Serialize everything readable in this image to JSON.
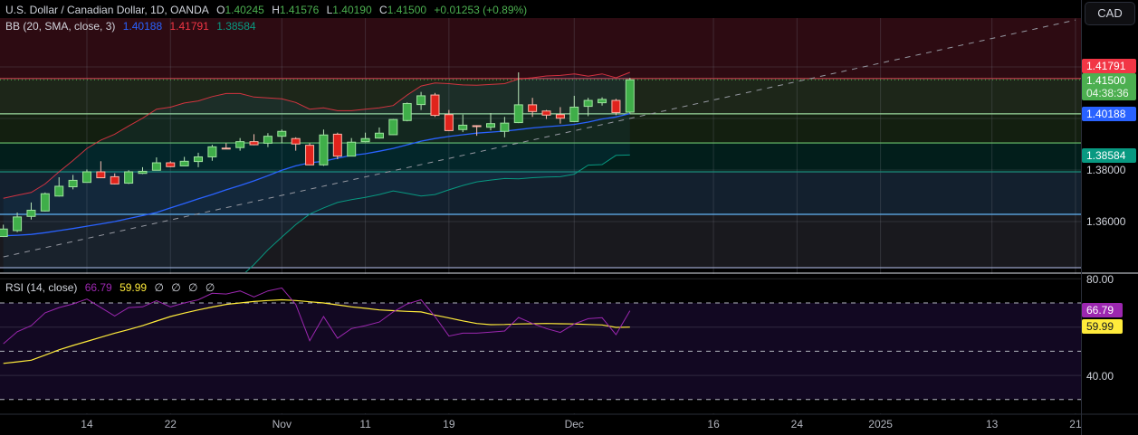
{
  "header": {
    "symbol": "U.S. Dollar / Canadian Dollar, 1D, OANDA",
    "open_label": "O",
    "open": "1.40245",
    "high_label": "H",
    "high": "1.41576",
    "low_label": "L",
    "low": "1.40190",
    "close_label": "C",
    "close": "1.41500",
    "change": "+0.01253 (+0.89%)"
  },
  "bb_legend": {
    "title": "BB (20, SMA, close, 3)",
    "basis": "1.40188",
    "upper": "1.41791",
    "lower": "1.38584"
  },
  "rsi_legend": {
    "title": "RSI (14, close)",
    "rsi": "66.79",
    "ma": "59.99",
    "extras": [
      "∅",
      "∅",
      "∅",
      "∅"
    ]
  },
  "currency_button": "CAD",
  "price_scale": {
    "labels": [
      "1.38000",
      "1.36000"
    ],
    "upper_tag": "1.41791",
    "last_tag": "1.41500",
    "countdown": "04:38:36",
    "basis_tag": "1.40188",
    "lower_tag": "1.38584"
  },
  "rsi_scale": {
    "labels": [
      "80.00",
      "40.00"
    ],
    "rsi_tag": "66.79",
    "ma_tag": "59.99"
  },
  "colors": {
    "up": "#4caf50",
    "down": "#e8261f",
    "bb_upper": "#f23645",
    "bb_basis": "#2962ff",
    "bb_lower": "#089981",
    "rsi": "#9c27b0",
    "rsi_ma": "#ffeb3b"
  },
  "chart_data": [
    {
      "type": "candlestick",
      "title": "U.S. Dollar / Canadian Dollar, 1D, OANDA",
      "ylim": [
        1.3414,
        1.439
      ],
      "yticks": [
        1.36,
        1.38,
        1.4,
        1.42
      ],
      "grid": true,
      "xticks": [
        {
          "label": "14",
          "date": "2024-10-14"
        },
        {
          "label": "22",
          "date": "2024-10-22"
        },
        {
          "label": "Nov",
          "date": "2024-11-01"
        },
        {
          "label": "11",
          "date": "2024-11-11"
        },
        {
          "label": "19",
          "date": "2024-11-19"
        },
        {
          "label": "Dec",
          "date": "2024-12-02"
        },
        {
          "label": "16",
          "date": "2024-12-16"
        },
        {
          "label": "24",
          "date": "2024-12-24"
        },
        {
          "label": "2025",
          "date": "2025-01-01"
        },
        {
          "label": "13",
          "date": "2025-01-13"
        },
        {
          "label": "21",
          "date": "2025-01-21"
        }
      ],
      "first_date": "2024-10-04",
      "candles_ohlc": [
        [
          1.3542,
          1.3588,
          1.354,
          1.3571
        ],
        [
          1.3565,
          1.3635,
          1.3559,
          1.3618
        ],
        [
          1.362,
          1.3674,
          1.3608,
          1.3644
        ],
        [
          1.3641,
          1.3713,
          1.3639,
          1.3708
        ],
        [
          1.3699,
          1.3772,
          1.3697,
          1.3737
        ],
        [
          1.3735,
          1.3781,
          1.3725,
          1.376
        ],
        [
          1.3752,
          1.3802,
          1.3752,
          1.3793
        ],
        [
          1.3793,
          1.3834,
          1.377,
          1.377
        ],
        [
          1.3774,
          1.3787,
          1.3744,
          1.3746
        ],
        [
          1.3749,
          1.3799,
          1.3746,
          1.3793
        ],
        [
          1.3787,
          1.3811,
          1.3784,
          1.3795
        ],
        [
          1.3799,
          1.3849,
          1.3799,
          1.3828
        ],
        [
          1.3828,
          1.3834,
          1.3811,
          1.3813
        ],
        [
          1.3816,
          1.3851,
          1.3816,
          1.3834
        ],
        [
          1.3833,
          1.3867,
          1.3811,
          1.3851
        ],
        [
          1.3851,
          1.3898,
          1.3836,
          1.389
        ],
        [
          1.3885,
          1.3904,
          1.3881,
          1.3883
        ],
        [
          1.3887,
          1.3924,
          1.3875,
          1.391
        ],
        [
          1.391,
          1.3939,
          1.3896,
          1.3898
        ],
        [
          1.3904,
          1.3943,
          1.3889,
          1.3931
        ],
        [
          1.3931,
          1.3957,
          1.3904,
          1.395
        ],
        [
          1.3922,
          1.3927,
          1.3875,
          1.3901
        ],
        [
          1.3896,
          1.3904,
          1.3819,
          1.382
        ],
        [
          1.382,
          1.3957,
          1.3816,
          1.3936
        ],
        [
          1.3939,
          1.3945,
          1.3842,
          1.3854
        ],
        [
          1.3854,
          1.3924,
          1.3854,
          1.3908
        ],
        [
          1.391,
          1.3945,
          1.3908,
          1.3922
        ],
        [
          1.3924,
          1.3965,
          1.3922,
          1.3943
        ],
        [
          1.3937,
          1.3998,
          1.3936,
          1.3996
        ],
        [
          1.3992,
          1.4062,
          1.3989,
          1.4058
        ],
        [
          1.4054,
          1.4103,
          1.4033,
          1.4088
        ],
        [
          1.4091,
          1.4099,
          1.4006,
          1.4012
        ],
        [
          1.4015,
          1.4033,
          1.3951,
          1.3953
        ],
        [
          1.3957,
          1.4015,
          1.3947,
          1.3974
        ],
        [
          1.3972,
          1.3974,
          1.3933,
          1.3969
        ],
        [
          1.3966,
          1.4021,
          1.3954,
          1.398
        ],
        [
          1.395,
          1.4006,
          1.3927,
          1.3982
        ],
        [
          1.3984,
          1.4179,
          1.3982,
          1.4053
        ],
        [
          1.4053,
          1.408,
          1.4006,
          1.4027
        ],
        [
          1.4029,
          1.4033,
          1.3998,
          1.4013
        ],
        [
          1.4015,
          1.4044,
          1.398,
          1.4001
        ],
        [
          1.3988,
          1.4088,
          1.3986,
          1.4044
        ],
        [
          1.4047,
          1.408,
          1.4009,
          1.407
        ],
        [
          1.4061,
          1.4082,
          1.405,
          1.4074
        ],
        [
          1.407,
          1.4076,
          1.4013,
          1.4023
        ],
        [
          1.40245,
          1.41576,
          1.4019,
          1.415
        ]
      ],
      "bb_upper": [
        1.369,
        1.3702,
        1.3713,
        1.3746,
        1.3793,
        1.3837,
        1.3884,
        1.3916,
        1.3939,
        1.3971,
        1.4001,
        1.4036,
        1.4044,
        1.406,
        1.4068,
        1.4085,
        1.4097,
        1.4097,
        1.4083,
        1.408,
        1.4076,
        1.4062,
        1.4036,
        1.4041,
        1.403,
        1.403,
        1.4036,
        1.4041,
        1.405,
        1.4091,
        1.4126,
        1.4138,
        1.4135,
        1.413,
        1.4129,
        1.4132,
        1.4135,
        1.4153,
        1.4158,
        1.4165,
        1.4167,
        1.4173,
        1.4164,
        1.4173,
        1.4158,
        1.41791
      ],
      "bb_basis": [
        1.3545,
        1.3547,
        1.355,
        1.3557,
        1.3565,
        1.3573,
        1.3582,
        1.3591,
        1.36,
        1.3612,
        1.3623,
        1.3635,
        1.3653,
        1.367,
        1.3688,
        1.3705,
        1.3723,
        1.374,
        1.3758,
        1.3778,
        1.3799,
        1.3816,
        1.3828,
        1.3834,
        1.3846,
        1.3857,
        1.3863,
        1.3873,
        1.3884,
        1.3898,
        1.3912,
        1.3922,
        1.393,
        1.3937,
        1.3943,
        1.3947,
        1.3951,
        1.3957,
        1.3963,
        1.3968,
        1.3972,
        1.3977,
        1.3986,
        1.3998,
        1.4006,
        1.40188
      ],
      "bb_lower": [
        1.34,
        1.3392,
        1.3387,
        1.3368,
        1.3337,
        1.3309,
        1.328,
        1.3266,
        1.3261,
        1.3253,
        1.3245,
        1.3234,
        1.3262,
        1.328,
        1.3308,
        1.3325,
        1.3349,
        1.3383,
        1.3433,
        1.349,
        1.354,
        1.3588,
        1.3629,
        1.3653,
        1.3674,
        1.3685,
        1.3694,
        1.3705,
        1.3719,
        1.3709,
        1.3699,
        1.3705,
        1.3723,
        1.374,
        1.3754,
        1.3761,
        1.3767,
        1.3766,
        1.377,
        1.3773,
        1.3774,
        1.3784,
        1.3819,
        1.3821,
        1.3857,
        1.38584
      ],
      "horizontal_levels": [
        {
          "price": 1.4155,
          "color": "#c8424f",
          "zone_below": "#1d2619"
        },
        {
          "price": 1.4018,
          "color": "#9ad69a",
          "zone_below": "#131f10"
        },
        {
          "price": 1.3905,
          "color": "#6cc46c",
          "zone_below": "#021e1b"
        },
        {
          "price": 1.3793,
          "color": "#1e8c7c",
          "zone_below": "#13202e"
        },
        {
          "price": 1.3628,
          "color": "#64b5f6",
          "zone_below": "#19191e"
        },
        {
          "price": 1.3421,
          "color": "#9aa3c8",
          "zone_below": "#000000"
        }
      ],
      "zone_top_color": "#2d0b12",
      "trendline": {
        "start": {
          "date": "2024-10-04",
          "price": 1.3463
        },
        "end": {
          "date": "2025-01-21",
          "price": 1.4382
        },
        "style": "dashed"
      }
    },
    {
      "type": "line",
      "title": "RSI (14, close)",
      "ylim": [
        22.5,
        81.5
      ],
      "levels": [
        70,
        50,
        30
      ],
      "gridlines": [
        80,
        60,
        40
      ],
      "series": [
        {
          "name": "RSI",
          "values": [
            53.1,
            58.1,
            60.6,
            65.9,
            68.1,
            69.6,
            71.6,
            68.1,
            64.6,
            68.1,
            68.4,
            70.9,
            68.4,
            70.0,
            71.3,
            74.0,
            73.7,
            75.0,
            72.5,
            75.0,
            76.2,
            69.4,
            54.4,
            64.4,
            55.4,
            59.4,
            60.6,
            62.1,
            66.3,
            69.6,
            71.3,
            64.4,
            56.3,
            57.5,
            57.5,
            57.9,
            58.4,
            64.0,
            61.5,
            59.4,
            57.8,
            61.3,
            63.5,
            63.9,
            56.9,
            66.79
          ]
        },
        {
          "name": "RSI MA",
          "values": [
            45.0,
            45.6,
            46.3,
            48.4,
            50.6,
            52.4,
            54.1,
            55.8,
            57.5,
            59.0,
            60.6,
            62.5,
            64.4,
            65.8,
            67.1,
            68.3,
            69.4,
            70.0,
            70.6,
            71.0,
            71.3,
            71.0,
            70.5,
            70.0,
            69.2,
            68.4,
            67.8,
            67.1,
            66.8,
            66.5,
            66.3,
            65.0,
            63.8,
            62.6,
            61.5,
            61.0,
            61.1,
            61.3,
            61.4,
            61.5,
            61.4,
            61.3,
            61.1,
            60.9,
            59.9,
            59.99
          ]
        }
      ]
    }
  ]
}
